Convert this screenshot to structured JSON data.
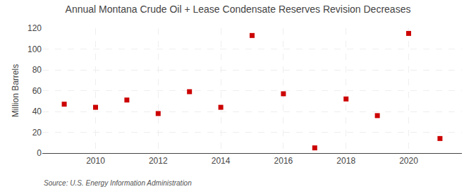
{
  "chart_data": {
    "type": "scatter",
    "title": "Annual Montana Crude Oil + Lease Condensate Reserves Revision Decreases",
    "ylabel": "Million Barrels",
    "annotations": [
      "Source: U.S. Energy Information Administration"
    ],
    "x": [
      2009,
      2010,
      2011,
      2012,
      2013,
      2014,
      2015,
      2016,
      2017,
      2018,
      2019,
      2020,
      2021
    ],
    "values": [
      47,
      44,
      51,
      38,
      59,
      44,
      113,
      57,
      5,
      52,
      36,
      115,
      14
    ],
    "color": "#cc0000",
    "marker": "square",
    "xlim": [
      2008.3,
      2021.7
    ],
    "xticks": [
      2010,
      2012,
      2014,
      2016,
      2018,
      2020
    ],
    "ylim": [
      0,
      120
    ],
    "yticks": [
      0,
      20,
      40,
      60,
      80,
      100,
      120
    ],
    "grid": true
  }
}
